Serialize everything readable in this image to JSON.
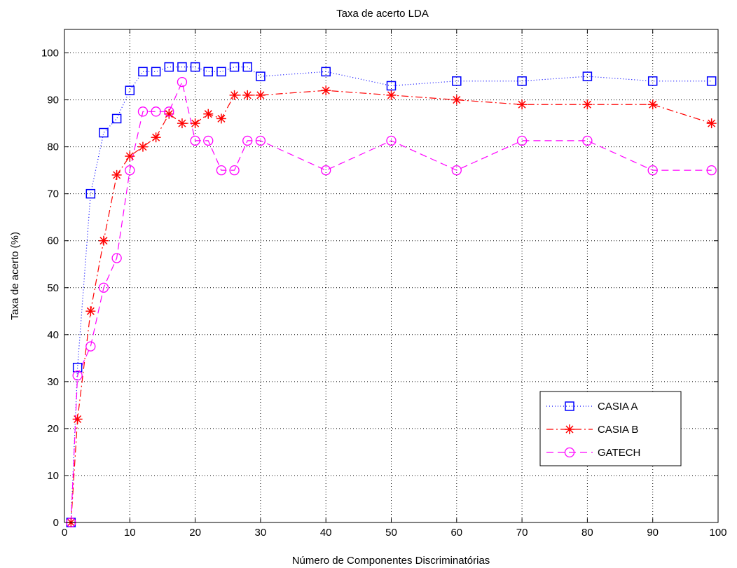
{
  "chart_data": {
    "type": "line",
    "title": "Taxa de acerto LDA",
    "xlabel": "Número de Componentes Discriminatórias",
    "ylabel": "Taxa de acerto (%)",
    "xlim": [
      0,
      100
    ],
    "ylim": [
      0,
      105
    ],
    "xticks": [
      0,
      10,
      20,
      30,
      40,
      50,
      60,
      70,
      80,
      90,
      100
    ],
    "yticks": [
      0,
      10,
      20,
      30,
      40,
      50,
      60,
      70,
      80,
      90,
      100
    ],
    "grid": true,
    "legend_position": "bottom-right",
    "x": [
      1,
      2,
      4,
      6,
      8,
      10,
      12,
      14,
      16,
      18,
      20,
      22,
      24,
      26,
      28,
      30,
      40,
      50,
      60,
      70,
      80,
      90,
      99
    ],
    "series": [
      {
        "name": "CASIA A",
        "color": "#0000ff",
        "line_style": "dotted",
        "marker": "square",
        "values": [
          0,
          33,
          70,
          83,
          86,
          92,
          96,
          96,
          97,
          97,
          97,
          96,
          96,
          97,
          97,
          95,
          96,
          93,
          94,
          94,
          95,
          94,
          94
        ]
      },
      {
        "name": "CASIA B",
        "color": "#ff0000",
        "line_style": "dashdot",
        "marker": "star",
        "values": [
          0,
          22,
          45,
          60,
          74,
          78,
          80,
          82,
          87,
          85,
          85,
          87,
          86,
          91,
          91,
          91,
          92,
          91,
          90,
          89,
          89,
          89,
          85
        ]
      },
      {
        "name": "GATECH",
        "color": "#ff00ff",
        "line_style": "dashed",
        "marker": "circle",
        "values": [
          0,
          31.3,
          37.5,
          50,
          56.3,
          75,
          87.5,
          87.5,
          87.5,
          93.8,
          81.3,
          81.3,
          75,
          75,
          81.3,
          81.3,
          75,
          81.3,
          75,
          81.3,
          81.3,
          75,
          75
        ]
      }
    ]
  }
}
